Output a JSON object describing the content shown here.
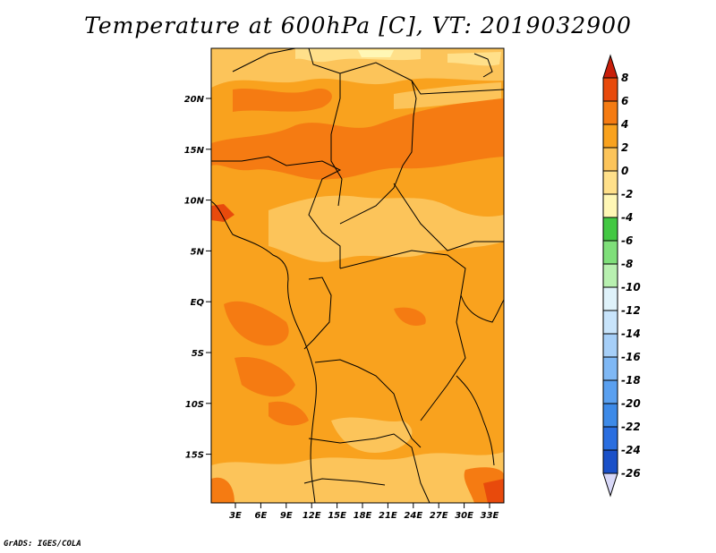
{
  "title": "Temperature at 600hPa [C], VT: 2019032900",
  "credit": "GrADS: IGES/COLA",
  "map": {
    "lat_ticks": [
      "20N",
      "15N",
      "10N",
      "5N",
      "EQ",
      "5S",
      "10S",
      "15S"
    ],
    "lon_ticks": [
      "3E",
      "6E",
      "9E",
      "12E",
      "15E",
      "18E",
      "21E",
      "24E",
      "27E",
      "30E",
      "33E"
    ]
  },
  "colorbar": {
    "levels": [
      "8",
      "6",
      "4",
      "2",
      "0",
      "-2",
      "-4",
      "-6",
      "-8",
      "-10",
      "-12",
      "-14",
      "-16",
      "-18",
      "-20",
      "-22",
      "-24",
      "-26"
    ],
    "colors": [
      "#d8d8f8",
      "#0a0a6e",
      "#0b2e9e",
      "#1a50c8",
      "#2a6ee0",
      "#3d8ae8",
      "#5aa0f0",
      "#7fb8f5",
      "#a6cff8",
      "#c8e4fb",
      "#dff2fa",
      "#b8f0b0",
      "#7fdf7a",
      "#43c843",
      "#fff7b5",
      "#ffe08a",
      "#fcc45a",
      "#f9a21e",
      "#f57b12",
      "#e84a0c",
      "#c81e0a"
    ],
    "palette_names": [
      "pale-lavender",
      "navy",
      "dark-blue",
      "blue",
      "medium-blue",
      "sky-blue",
      "light-blue",
      "lighter-blue",
      "pale-blue",
      "very-pale-blue",
      "ice",
      "pale-green",
      "light-green",
      "green",
      "pale-yellow",
      "light-yellow",
      "yellow-orange",
      "orange",
      "dark-orange",
      "red-orange",
      "red"
    ]
  }
}
